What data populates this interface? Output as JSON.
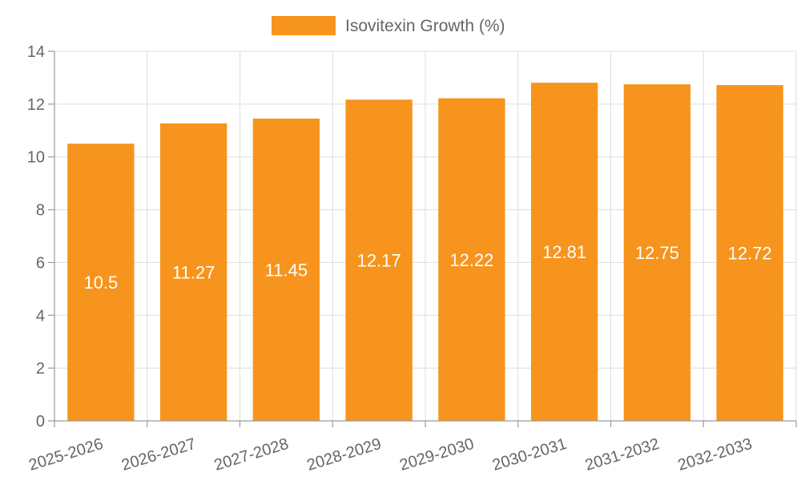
{
  "chart_data": {
    "type": "bar",
    "categories": [
      "2025-2026",
      "2026-2027",
      "2027-2028",
      "2028-2029",
      "2029-2030",
      "2030-2031",
      "2031-2032",
      "2032-2033"
    ],
    "series": [
      {
        "name": "Isovitexin Growth (%)",
        "values": [
          10.5,
          11.27,
          11.45,
          12.17,
          12.22,
          12.81,
          12.75,
          12.72
        ],
        "color": "#f7941d"
      }
    ],
    "ylim": [
      0,
      14
    ],
    "yticks": [
      0,
      2,
      4,
      6,
      8,
      10,
      12,
      14
    ],
    "grid": true,
    "legend": "top-center",
    "title": "",
    "xlabel": "",
    "ylabel": ""
  }
}
